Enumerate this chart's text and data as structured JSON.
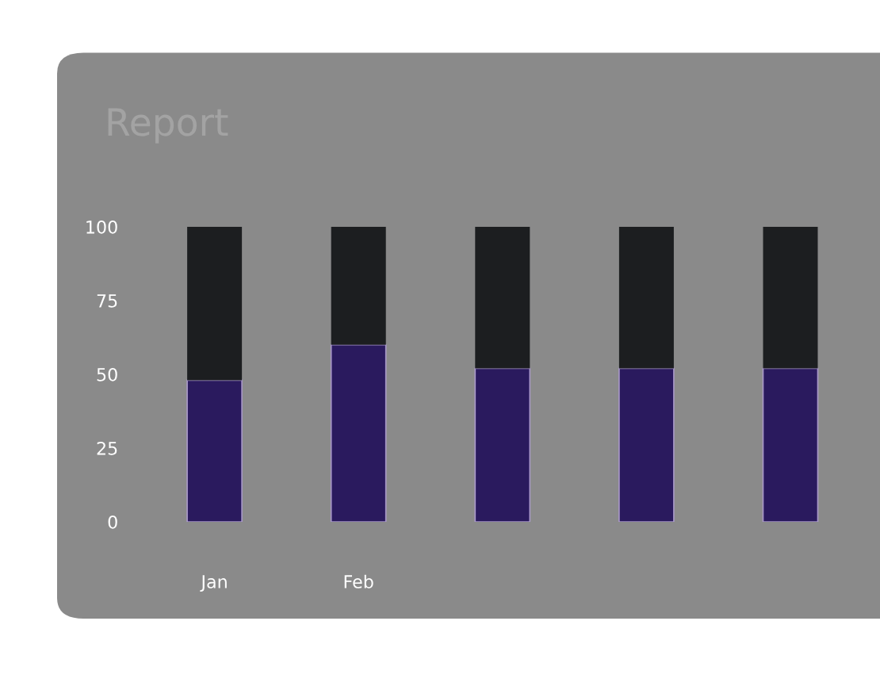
{
  "chart_data": {
    "type": "bar",
    "title": "Report",
    "stacked": true,
    "categories": [
      "Jan",
      "Feb",
      null,
      null,
      null
    ],
    "series": [
      {
        "color": "#2a1a5e",
        "values": [
          48,
          60,
          52,
          52,
          52
        ]
      },
      {
        "color": "#1c1e20",
        "values": [
          52,
          40,
          48,
          48,
          48
        ]
      }
    ],
    "ylim": [
      0,
      100
    ],
    "yticks": [
      0,
      25,
      50,
      75,
      100
    ],
    "grid": false,
    "legend": false
  }
}
